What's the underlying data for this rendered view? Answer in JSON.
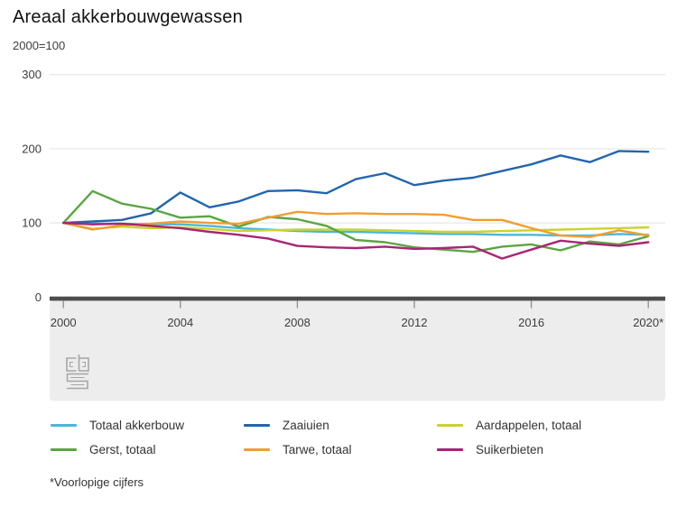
{
  "header": {
    "title": "Areaal akkerbouwgewassen",
    "subtitle": "2000=100"
  },
  "footnote": "*Voorlopige cijfers",
  "logo": {
    "name": "cbs-logo"
  },
  "chart_data": {
    "type": "line",
    "title": "Areaal akkerbouwgewassen",
    "index_base": "2000=100",
    "x": [
      2000,
      2001,
      2002,
      2003,
      2004,
      2005,
      2006,
      2007,
      2008,
      2009,
      2010,
      2011,
      2012,
      2013,
      2014,
      2015,
      2016,
      2017,
      2018,
      2019,
      2020
    ],
    "x_tick_years": [
      2000,
      2004,
      2008,
      2012,
      2016,
      2020
    ],
    "x_tick_labels": [
      "2000",
      "2004",
      "2008",
      "2012",
      "2016",
      "2020*"
    ],
    "y_ticks": [
      0,
      100,
      200,
      300
    ],
    "y_tick_labels": [
      "0",
      "100",
      "200",
      "300"
    ],
    "ylim": [
      0,
      300
    ],
    "grid": "horizontal",
    "legend_position": "bottom",
    "series": [
      {
        "name": "Totaal akkerbouw",
        "color": "#4cb6d8",
        "values": [
          100,
          99,
          99,
          98,
          98,
          96,
          93,
          91,
          89,
          88,
          88,
          87,
          86,
          85,
          85,
          84,
          84,
          83,
          83,
          85,
          84
        ]
      },
      {
        "name": "Zaaiuien",
        "color": "#2166ae",
        "values": [
          100,
          102,
          104,
          113,
          141,
          121,
          129,
          143,
          144,
          140,
          159,
          167,
          151,
          157,
          161,
          170,
          179,
          191,
          182,
          197,
          196
        ]
      },
      {
        "name": "Aardappelen, totaal",
        "color": "#cad32f",
        "values": [
          100,
          92,
          95,
          93,
          94,
          92,
          89,
          90,
          91,
          91,
          91,
          90,
          89,
          88,
          88,
          89,
          90,
          91,
          92,
          93,
          94
        ]
      },
      {
        "name": "Gerst, totaal",
        "color": "#5aa544",
        "values": [
          100,
          143,
          126,
          119,
          107,
          109,
          95,
          108,
          105,
          96,
          77,
          74,
          67,
          64,
          61,
          68,
          71,
          63,
          75,
          71,
          82
        ]
      },
      {
        "name": "Tarwe, totaal",
        "color": "#f19d33",
        "values": [
          100,
          91,
          97,
          99,
          102,
          100,
          99,
          107,
          115,
          112,
          113,
          112,
          112,
          111,
          104,
          104,
          93,
          83,
          81,
          90,
          83
        ]
      },
      {
        "name": "Suikerbieten",
        "color": "#a82573",
        "values": [
          100,
          98,
          99,
          96,
          93,
          88,
          84,
          79,
          69,
          67,
          66,
          68,
          65,
          66,
          68,
          52,
          64,
          76,
          72,
          69,
          74
        ]
      }
    ],
    "legend_order": [
      "Totaal akkerbouw",
      "Zaaiuien",
      "Aardappelen, totaal",
      "Gerst, totaal",
      "Tarwe, totaal",
      "Suikerbieten"
    ]
  }
}
